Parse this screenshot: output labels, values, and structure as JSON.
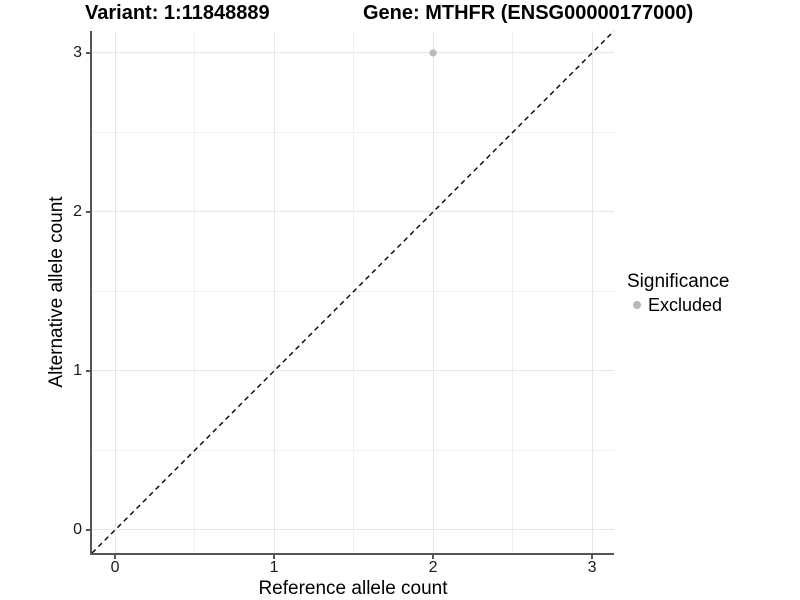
{
  "chart_data": {
    "type": "scatter",
    "titles": [
      "Variant: 1:11848889",
      "Gene: MTHFR (ENSG00000177000)"
    ],
    "xlabel": "Reference allele count",
    "ylabel": "Alternative allele count",
    "xlim": [
      -0.145,
      3.138
    ],
    "ylim": [
      -0.151,
      3.138
    ],
    "xticks": [
      0,
      1,
      2,
      3
    ],
    "yticks": [
      0,
      1,
      2,
      3
    ],
    "minor_xticks": [
      0.5,
      1.5,
      2.5
    ],
    "minor_yticks": [
      0.5,
      1.5,
      2.5
    ],
    "grid": true,
    "identity_line": {
      "show": true,
      "style": "dashed",
      "color": "#000000"
    },
    "legend": {
      "title": "Significance",
      "position": "right",
      "items": [
        {
          "label": "Excluded",
          "color": "#b9b9b9"
        }
      ]
    },
    "series": [
      {
        "name": "Excluded",
        "color": "#b9b9b9",
        "points": [
          {
            "x": 2,
            "y": 3
          }
        ]
      }
    ],
    "colors": {
      "grid_major": "#e6e6e6",
      "grid_minor": "#f1f1f1",
      "axis_line": "#555555",
      "tick_label": "#1a1a1a",
      "background": "#ffffff"
    }
  }
}
